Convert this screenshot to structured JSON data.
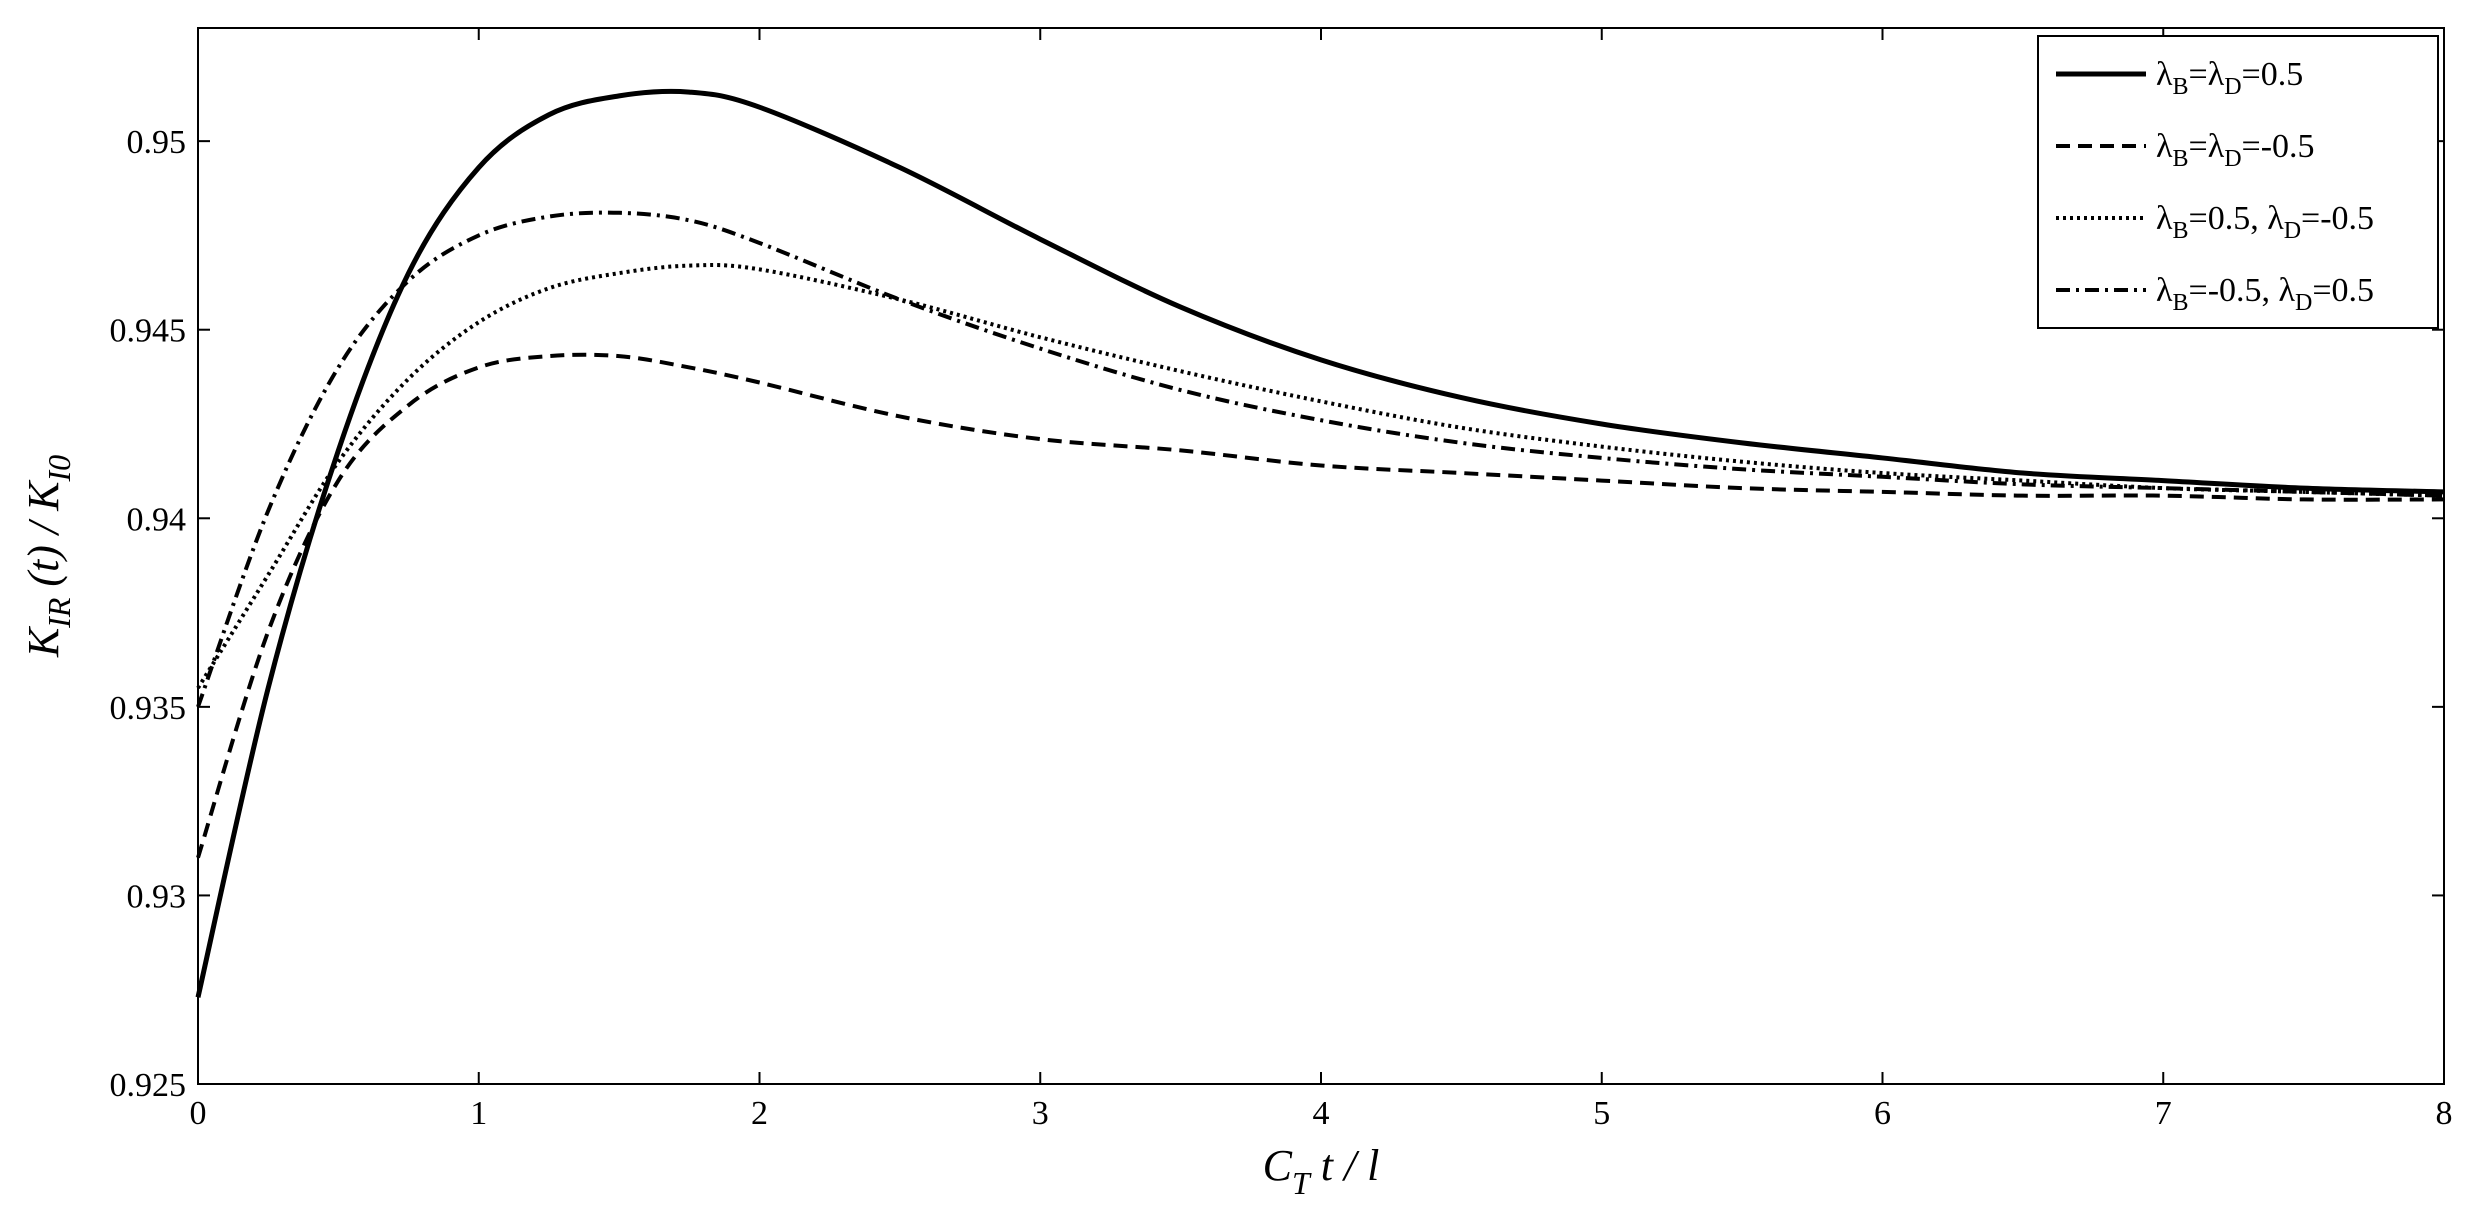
{
  "chart_data": {
    "type": "line",
    "xlim": [
      0,
      8
    ],
    "ylim": [
      0.925,
      0.953
    ],
    "xticks": [
      "0",
      "1",
      "2",
      "3",
      "4",
      "5",
      "6",
      "7",
      "8"
    ],
    "yticks": [
      "0.925",
      "0.93",
      "0.935",
      "0.94",
      "0.945",
      "0.95"
    ],
    "xlabel": {
      "main": "C",
      "sub": "T",
      "rest": " t / l"
    },
    "ylabel": {
      "k1": "K",
      "k1sub": "IR",
      "mid": " (t) / ",
      "k2": "K",
      "k2sub": "I0"
    },
    "grid": false,
    "legend_position": "top-right",
    "x": [
      0,
      0.25,
      0.5,
      0.75,
      1.0,
      1.25,
      1.5,
      1.75,
      2.0,
      2.5,
      3.0,
      3.5,
      4.0,
      4.5,
      5.0,
      5.5,
      6.0,
      6.5,
      7.0,
      7.5,
      8.0
    ],
    "series": [
      {
        "legend_parts": [
          [
            "λ",
            "B",
            ""
          ],
          [
            "=λ",
            "D",
            "=0.5"
          ]
        ],
        "dash": "none",
        "values": [
          0.9273,
          0.9355,
          0.9418,
          0.9465,
          0.9493,
          0.9507,
          0.9512,
          0.9513,
          0.9509,
          0.9493,
          0.9474,
          0.9456,
          0.9442,
          0.9432,
          0.9425,
          0.942,
          0.9416,
          0.9412,
          0.941,
          0.9408,
          0.9407
        ]
      },
      {
        "legend_parts": [
          [
            "λ",
            "B",
            ""
          ],
          [
            "=λ",
            "D",
            "=-0.5"
          ]
        ],
        "dash": "14 8",
        "values": [
          0.931,
          0.937,
          0.941,
          0.943,
          0.944,
          0.9443,
          0.9443,
          0.944,
          0.9436,
          0.9427,
          0.9421,
          0.9418,
          0.9414,
          0.9412,
          0.941,
          0.9408,
          0.9407,
          0.9406,
          0.9406,
          0.9405,
          0.9405
        ]
      },
      {
        "legend_parts": [
          [
            "λ",
            "B",
            "=0.5,  "
          ],
          [
            "λ",
            "D",
            "=-0.5"
          ]
        ],
        "dash": "3 4",
        "values": [
          0.9355,
          0.9385,
          0.9415,
          0.9437,
          0.9452,
          0.9461,
          0.9465,
          0.9467,
          0.9466,
          0.9458,
          0.9448,
          0.9439,
          0.9431,
          0.9424,
          0.9419,
          0.9415,
          0.9412,
          0.941,
          0.9408,
          0.9407,
          0.9406
        ]
      },
      {
        "legend_parts": [
          [
            "λ",
            "B",
            "=-0.5,  "
          ],
          [
            "λ",
            "D",
            "=0.5"
          ]
        ],
        "dash": "14 6 3 6",
        "values": [
          0.935,
          0.9402,
          0.944,
          0.9463,
          0.9475,
          0.948,
          0.9481,
          0.9479,
          0.9473,
          0.9458,
          0.9445,
          0.9434,
          0.9426,
          0.942,
          0.9416,
          0.9413,
          0.9411,
          0.9409,
          0.9408,
          0.9407,
          0.9406
        ]
      }
    ]
  }
}
